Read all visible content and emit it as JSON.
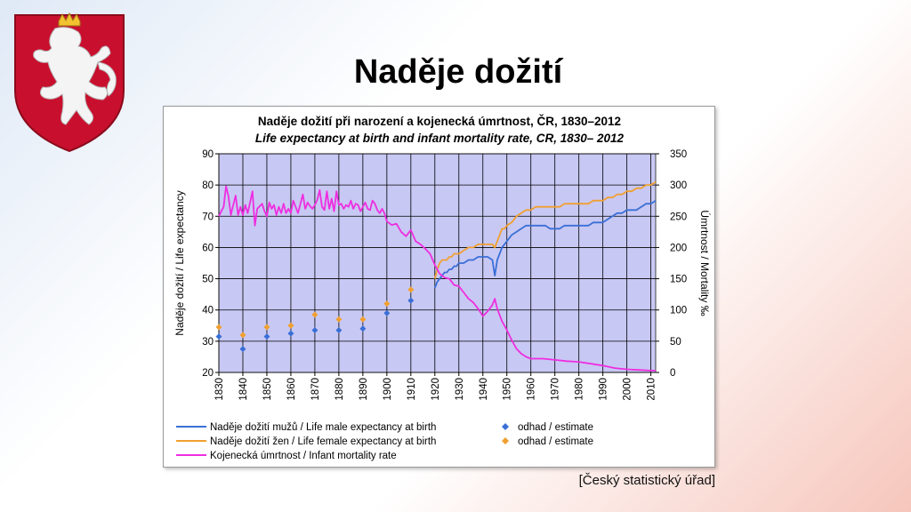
{
  "slide": {
    "title": "Naděje dožití",
    "source": "[Český statistický úřad]"
  },
  "colors": {
    "plot_bg": "#c8c8f4",
    "male": "#3a6fd6",
    "female": "#f0a030",
    "infant": "#ee2ee0",
    "coat_red": "#c8102e"
  },
  "chart_data": {
    "type": "line",
    "title": "Naděje dožití při narození a kojenecká úmrtnost, ČR, 1830–2012",
    "subtitle": "Life expectancy at birth and infant mortality rate, CR, 1830– 2012",
    "ylabel_left": "Naděje dožití / Life expectancy",
    "ylabel_right": "Úmrtnost / Mortality ‰",
    "xlim": [
      1830,
      2012
    ],
    "ylim_left": [
      20,
      90
    ],
    "ylim_right": [
      0,
      350
    ],
    "x_ticks": [
      "1830",
      "1840",
      "1850",
      "1860",
      "1870",
      "1880",
      "1890",
      "1900",
      "1910",
      "1920",
      "1930",
      "1940",
      "1950",
      "1960",
      "1970",
      "1980",
      "1990",
      "2000",
      "2010"
    ],
    "y_left_ticks": [
      "20",
      "30",
      "40",
      "50",
      "60",
      "70",
      "80",
      "90"
    ],
    "y_right_ticks": [
      "0",
      "50",
      "100",
      "150",
      "200",
      "250",
      "300",
      "350"
    ],
    "grid": true,
    "legend_position": "bottom",
    "legend": {
      "male": "Naděje dožití mužů / Life male expectancy at birth",
      "female": "Naděje dožití žen / Life female expectancy at birth",
      "infant": "Kojenecká úmrtnost / Infant mortality rate",
      "male_estimate": "odhad / estimate",
      "female_estimate": "odhad / estimate"
    },
    "series": [
      {
        "key": "male",
        "name": "Naděje dožití mužů / Life male expectancy at birth",
        "axis": "left",
        "x": [
          1920,
          1921,
          1922,
          1923,
          1924,
          1925,
          1926,
          1927,
          1928,
          1929,
          1930,
          1932,
          1934,
          1936,
          1938,
          1940,
          1942,
          1944,
          1945,
          1946,
          1947,
          1948,
          1949,
          1950,
          1952,
          1954,
          1956,
          1958,
          1960,
          1962,
          1964,
          1966,
          1968,
          1970,
          1972,
          1974,
          1976,
          1978,
          1980,
          1982,
          1984,
          1986,
          1988,
          1990,
          1992,
          1994,
          1996,
          1998,
          2000,
          2002,
          2004,
          2006,
          2008,
          2010,
          2012
        ],
        "y": [
          47,
          49,
          50,
          51,
          52,
          52,
          53,
          53,
          54,
          54,
          55,
          55,
          56,
          56,
          57,
          57,
          57,
          56,
          51,
          56,
          58,
          60,
          61,
          62,
          64,
          65,
          66,
          67,
          67,
          67,
          67,
          67,
          66,
          66,
          66,
          67,
          67,
          67,
          67,
          67,
          67,
          68,
          68,
          68,
          69,
          70,
          71,
          71,
          72,
          72,
          72,
          73,
          74,
          74,
          75
        ]
      },
      {
        "key": "female",
        "name": "Naděje dožití žen / Life female expectancy at birth",
        "axis": "left",
        "x": [
          1920,
          1921,
          1922,
          1923,
          1924,
          1925,
          1926,
          1927,
          1928,
          1929,
          1930,
          1932,
          1934,
          1936,
          1938,
          1940,
          1942,
          1944,
          1945,
          1946,
          1947,
          1948,
          1949,
          1950,
          1952,
          1954,
          1956,
          1958,
          1960,
          1962,
          1964,
          1966,
          1968,
          1970,
          1972,
          1974,
          1976,
          1978,
          1980,
          1982,
          1984,
          1986,
          1988,
          1990,
          1992,
          1994,
          1996,
          1998,
          2000,
          2002,
          2004,
          2006,
          2008,
          2010,
          2012
        ],
        "y": [
          50,
          53,
          55,
          56,
          56,
          56,
          57,
          57,
          58,
          58,
          58,
          59,
          60,
          60,
          61,
          61,
          61,
          61,
          60,
          62,
          64,
          66,
          66,
          67,
          68,
          70,
          71,
          72,
          72,
          73,
          73,
          73,
          73,
          73,
          73,
          74,
          74,
          74,
          74,
          74,
          74,
          75,
          75,
          75,
          76,
          76,
          77,
          77,
          78,
          78,
          79,
          79,
          80,
          80,
          81
        ]
      },
      {
        "key": "infant",
        "name": "Kojenecká úmrtnost / Infant mortality rate",
        "axis": "right",
        "x": [
          1830,
          1831,
          1832,
          1833,
          1834,
          1835,
          1836,
          1837,
          1838,
          1839,
          1840,
          1841,
          1842,
          1843,
          1844,
          1845,
          1846,
          1847,
          1848,
          1849,
          1850,
          1851,
          1852,
          1853,
          1854,
          1855,
          1856,
          1857,
          1858,
          1859,
          1860,
          1861,
          1862,
          1863,
          1864,
          1865,
          1866,
          1867,
          1868,
          1869,
          1870,
          1871,
          1872,
          1873,
          1874,
          1875,
          1876,
          1877,
          1878,
          1879,
          1880,
          1881,
          1882,
          1883,
          1884,
          1885,
          1886,
          1887,
          1888,
          1889,
          1890,
          1891,
          1892,
          1893,
          1894,
          1895,
          1896,
          1897,
          1898,
          1899,
          1900,
          1902,
          1904,
          1906,
          1908,
          1910,
          1912,
          1914,
          1916,
          1918,
          1920,
          1922,
          1924,
          1926,
          1928,
          1930,
          1932,
          1934,
          1936,
          1938,
          1940,
          1942,
          1944,
          1945,
          1946,
          1948,
          1950,
          1952,
          1954,
          1956,
          1958,
          1960,
          1965,
          1970,
          1975,
          1980,
          1985,
          1990,
          1995,
          2000,
          2005,
          2010,
          2012
        ],
        "y": [
          250,
          258,
          265,
          298,
          282,
          252,
          268,
          283,
          252,
          265,
          252,
          268,
          255,
          272,
          290,
          235,
          262,
          266,
          270,
          258,
          250,
          272,
          262,
          268,
          252,
          265,
          255,
          270,
          255,
          262,
          255,
          275,
          265,
          255,
          270,
          285,
          262,
          272,
          266,
          262,
          268,
          276,
          292,
          265,
          260,
          290,
          262,
          278,
          258,
          290,
          268,
          270,
          262,
          268,
          265,
          275,
          262,
          270,
          268,
          258,
          265,
          272,
          262,
          260,
          275,
          270,
          260,
          255,
          262,
          255,
          242,
          236,
          238,
          225,
          218,
          228,
          210,
          205,
          198,
          190,
          172,
          158,
          152,
          150,
          140,
          138,
          128,
          118,
          112,
          102,
          90,
          98,
          108,
          118,
          102,
          82,
          68,
          52,
          38,
          30,
          25,
          22,
          22,
          20,
          18,
          17,
          14,
          11,
          7,
          5,
          4,
          3,
          3
        ]
      },
      {
        "key": "male_estimate",
        "name": "odhad / estimate",
        "axis": "left",
        "x": [
          1830,
          1840,
          1850,
          1860,
          1870,
          1880,
          1890,
          1900,
          1910
        ],
        "y": [
          31.5,
          27.5,
          31.5,
          32.5,
          33.5,
          33.5,
          34,
          39,
          43
        ]
      },
      {
        "key": "female_estimate",
        "name": "odhad / estimate",
        "axis": "left",
        "x": [
          1830,
          1840,
          1850,
          1860,
          1870,
          1880,
          1890,
          1900,
          1910
        ],
        "y": [
          34.5,
          32,
          34.5,
          35,
          38.5,
          37,
          37,
          42,
          46.5
        ]
      }
    ]
  }
}
